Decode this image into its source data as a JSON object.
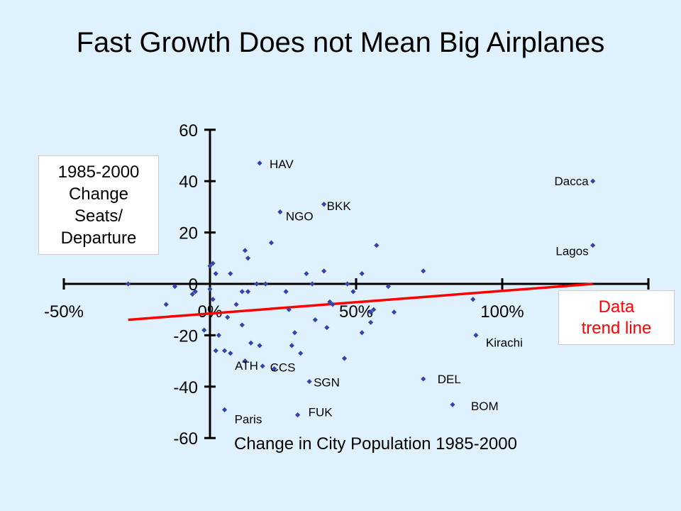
{
  "title": "Fast Growth Does not Mean Big Airplanes",
  "chart_data": {
    "type": "scatter",
    "title": "Fast Growth Does not Mean Big Airplanes",
    "xlabel": "Change in City Population 1985-2000",
    "ylabel": "1985-2000\nChange\n Seats/\nDeparture",
    "trend_label": "Data\ntrend line",
    "xlim": [
      -50,
      150
    ],
    "ylim": [
      -60,
      60
    ],
    "x_ticks": [
      -50,
      0,
      50,
      100
    ],
    "x_tick_labels": [
      "-50%",
      "0%",
      "50%",
      "100%"
    ],
    "y_ticks": [
      60,
      40,
      20,
      0,
      -20,
      -40,
      -60
    ],
    "y_tick_labels": [
      "60",
      "40",
      "20",
      "0",
      "-20",
      "-40",
      "-60"
    ],
    "grid": false,
    "colors": {
      "points": "#3344aa",
      "trend": "#ff0000",
      "background": "#dff1fc"
    },
    "trendline": {
      "x": [
        -28,
        131
      ],
      "y": [
        -14,
        0
      ]
    },
    "labeled_points": [
      {
        "label": "HAV",
        "x": 17,
        "y": 47
      },
      {
        "label": "BKK",
        "x": 39,
        "y": 31
      },
      {
        "label": "NGO",
        "x": 24,
        "y": 28
      },
      {
        "label": "Dacca",
        "x": 131,
        "y": 40
      },
      {
        "label": "Lagos",
        "x": 131,
        "y": 15
      },
      {
        "label": "Kirachi",
        "x": 91,
        "y": -20
      },
      {
        "label": "DEL",
        "x": 73,
        "y": -37
      },
      {
        "label": "BOM",
        "x": 83,
        "y": -47
      },
      {
        "label": "SGN",
        "x": 34,
        "y": -38
      },
      {
        "label": "FUK",
        "x": 30,
        "y": -51
      },
      {
        "label": "Paris",
        "x": 5,
        "y": -49
      },
      {
        "label": "ATH",
        "x": 18,
        "y": -32
      },
      {
        "label": "CCS",
        "x": 22,
        "y": -33
      }
    ],
    "points": [
      {
        "x": -28,
        "y": 0
      },
      {
        "x": -15,
        "y": -8
      },
      {
        "x": -12,
        "y": -1
      },
      {
        "x": -6,
        "y": -4
      },
      {
        "x": -5,
        "y": -3
      },
      {
        "x": -2,
        "y": -18
      },
      {
        "x": 0,
        "y": 7
      },
      {
        "x": 1,
        "y": 8
      },
      {
        "x": 2,
        "y": 4
      },
      {
        "x": 0,
        "y": -2
      },
      {
        "x": 1,
        "y": -6
      },
      {
        "x": 3,
        "y": -20
      },
      {
        "x": 2,
        "y": -26
      },
      {
        "x": 5,
        "y": -26
      },
      {
        "x": 7,
        "y": -27
      },
      {
        "x": 6,
        "y": -13
      },
      {
        "x": 7,
        "y": 4
      },
      {
        "x": 9,
        "y": -8
      },
      {
        "x": 11,
        "y": -16
      },
      {
        "x": 11,
        "y": -3
      },
      {
        "x": 12,
        "y": 13
      },
      {
        "x": 13,
        "y": 10
      },
      {
        "x": 13,
        "y": -3
      },
      {
        "x": 14,
        "y": -23
      },
      {
        "x": 17,
        "y": -24
      },
      {
        "x": 16,
        "y": 0
      },
      {
        "x": 19,
        "y": 0
      },
      {
        "x": 12,
        "y": -30
      },
      {
        "x": 21,
        "y": 16
      },
      {
        "x": 26,
        "y": -3
      },
      {
        "x": 27,
        "y": -10
      },
      {
        "x": 28,
        "y": -24
      },
      {
        "x": 29,
        "y": -19
      },
      {
        "x": 31,
        "y": -27
      },
      {
        "x": 33,
        "y": 4
      },
      {
        "x": 35,
        "y": 0
      },
      {
        "x": 36,
        "y": -14
      },
      {
        "x": 39,
        "y": 5
      },
      {
        "x": 40,
        "y": -17
      },
      {
        "x": 41,
        "y": -7
      },
      {
        "x": 42,
        "y": -8
      },
      {
        "x": 46,
        "y": -29
      },
      {
        "x": 47,
        "y": 0
      },
      {
        "x": 49,
        "y": -3
      },
      {
        "x": 52,
        "y": 4
      },
      {
        "x": 52,
        "y": -19
      },
      {
        "x": 55,
        "y": -11
      },
      {
        "x": 55,
        "y": -15
      },
      {
        "x": 56,
        "y": -10
      },
      {
        "x": 57,
        "y": 15
      },
      {
        "x": 61,
        "y": -1
      },
      {
        "x": 63,
        "y": -11
      },
      {
        "x": 73,
        "y": 5
      },
      {
        "x": 90,
        "y": -6
      }
    ]
  }
}
